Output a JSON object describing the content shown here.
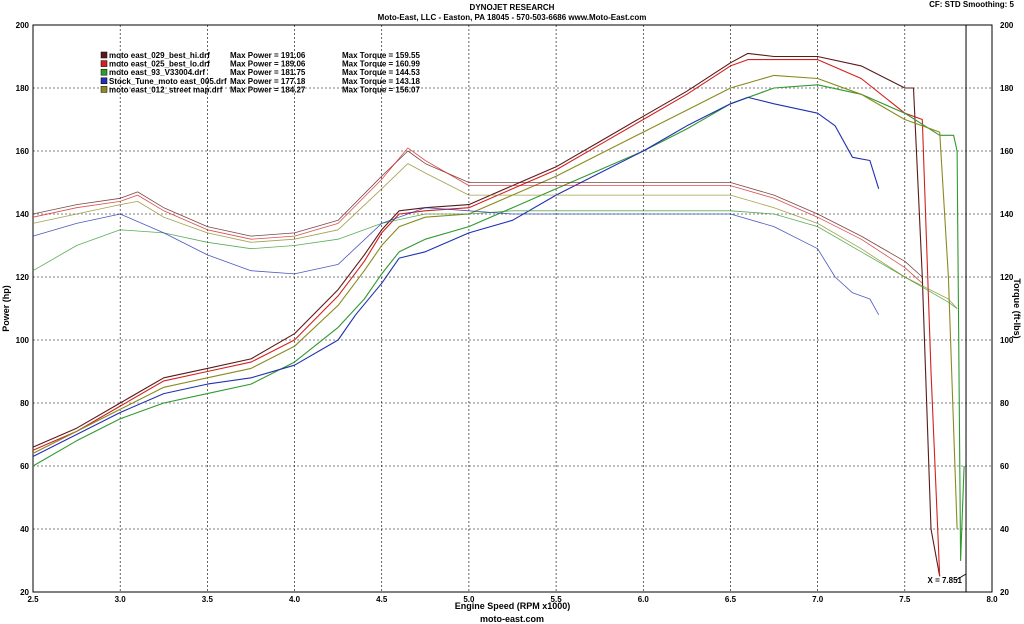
{
  "header": {
    "title": "DYNOJET RESEARCH",
    "subtitle": "Moto-East, LLC - Easton, PA 18045 - 570-503-6686 www.Moto-East.com",
    "settings": "CF: STD   Smoothing: 5"
  },
  "footer": {
    "text": "moto-east.com"
  },
  "chart_data": {
    "type": "line",
    "xlabel": "Engine Speed (RPM x1000)",
    "ylabel_left": "Power (hp)",
    "ylabel_right": "Torque (ft-lbs)",
    "xlim": [
      2.5,
      8.0
    ],
    "ylim": [
      20,
      200
    ],
    "xticks": [
      "2.5",
      "3.0",
      "3.5",
      "4.0",
      "4.5",
      "5.0",
      "5.5",
      "6.0",
      "6.5",
      "7.0",
      "7.5",
      "8.0"
    ],
    "yticks": [
      "20",
      "40",
      "60",
      "80",
      "100",
      "120",
      "140",
      "160",
      "180",
      "200"
    ],
    "grid": true,
    "legend_position": "top-left",
    "cursor": {
      "label": "X = 7.851",
      "x": 7.851
    },
    "legend": [
      {
        "name": "moto east_029_best_hi.drf",
        "power_label": "Max Power = 191.06",
        "torque_label": "Max Torque = 159.55",
        "color": "#5a1a1a"
      },
      {
        "name": "moto east_025_best_lo.drf",
        "power_label": "Max Power = 189.06",
        "torque_label": "Max Torque = 160.99",
        "color": "#d42020"
      },
      {
        "name": "moto east_93_V33004.drf",
        "power_label": "Max Power = 181.75",
        "torque_label": "Max Torque = 144.53",
        "color": "#2f9a2f"
      },
      {
        "name": "Stock_Tune_moto east_005.drf",
        "power_label": "Max Power = 177.18",
        "torque_label": "Max Torque = 143.18",
        "color": "#2030b0"
      },
      {
        "name": "moto east_012_street map.drf",
        "power_label": "Max Power = 184.27",
        "torque_label": "Max Torque = 156.07",
        "color": "#8a8a20"
      }
    ],
    "series": [
      {
        "name": "moto east_029_best_hi.drf",
        "kind": "power",
        "color": "#5a1a1a",
        "x": [
          2.5,
          2.75,
          3.0,
          3.25,
          3.5,
          3.75,
          4.0,
          4.25,
          4.4,
          4.5,
          4.6,
          4.75,
          5.0,
          5.25,
          5.5,
          5.75,
          6.0,
          6.25,
          6.5,
          6.6,
          6.75,
          7.0,
          7.25,
          7.5,
          7.55,
          7.6,
          7.65,
          7.7
        ],
        "y": [
          66,
          72,
          80,
          88,
          91,
          94,
          102,
          116,
          127,
          135,
          141,
          142,
          143,
          149,
          155,
          163,
          171,
          179,
          188,
          191,
          190,
          190,
          187,
          180,
          180,
          120,
          40,
          25
        ]
      },
      {
        "name": "moto east_025_best_lo.drf",
        "kind": "power",
        "color": "#d42020",
        "x": [
          2.5,
          2.75,
          3.0,
          3.25,
          3.5,
          3.75,
          4.0,
          4.25,
          4.4,
          4.5,
          4.6,
          4.75,
          5.0,
          5.25,
          5.5,
          5.75,
          6.0,
          6.25,
          6.5,
          6.6,
          6.75,
          7.0,
          7.25,
          7.5,
          7.6,
          7.65,
          7.7
        ],
        "y": [
          65,
          71,
          79,
          87,
          90,
          93,
          100,
          114,
          125,
          134,
          140,
          141,
          142,
          148,
          154,
          162,
          170,
          178,
          187,
          189,
          189,
          189,
          183,
          172,
          170,
          90,
          25
        ]
      },
      {
        "name": "moto east_93_V33004.drf",
        "kind": "power",
        "color": "#2f9a2f",
        "x": [
          2.5,
          2.75,
          3.0,
          3.25,
          3.5,
          3.75,
          4.0,
          4.25,
          4.4,
          4.5,
          4.6,
          4.75,
          5.0,
          5.25,
          5.5,
          5.75,
          6.0,
          6.25,
          6.5,
          6.75,
          7.0,
          7.25,
          7.5,
          7.7,
          7.78,
          7.8,
          7.82,
          7.84
        ],
        "y": [
          60,
          68,
          75,
          80,
          83,
          86,
          93,
          104,
          113,
          121,
          128,
          132,
          136,
          142,
          148,
          154,
          160,
          167,
          175,
          180,
          181,
          178,
          172,
          165,
          165,
          160,
          30,
          60
        ]
      },
      {
        "name": "Stock_Tune_moto east_005.drf",
        "kind": "power",
        "color": "#2030b0",
        "x": [
          2.5,
          2.75,
          3.0,
          3.25,
          3.5,
          3.75,
          4.0,
          4.25,
          4.35,
          4.5,
          4.6,
          4.75,
          5.0,
          5.25,
          5.5,
          5.75,
          6.0,
          6.25,
          6.5,
          6.6,
          6.75,
          7.0,
          7.1,
          7.2,
          7.3,
          7.35
        ],
        "y": [
          63,
          70,
          77,
          83,
          86,
          88,
          92,
          100,
          108,
          118,
          126,
          128,
          134,
          138,
          146,
          153,
          160,
          168,
          175,
          177,
          175,
          172,
          168,
          158,
          157,
          148
        ]
      },
      {
        "name": "moto east_012_street map.drf",
        "kind": "power",
        "color": "#8a8a20",
        "x": [
          2.5,
          2.75,
          3.0,
          3.25,
          3.5,
          3.75,
          4.0,
          4.25,
          4.4,
          4.5,
          4.6,
          4.75,
          5.0,
          5.25,
          5.5,
          5.75,
          6.0,
          6.25,
          6.5,
          6.75,
          7.0,
          7.25,
          7.5,
          7.7,
          7.75,
          7.8
        ],
        "y": [
          64,
          71,
          78,
          85,
          88,
          91,
          98,
          111,
          122,
          130,
          136,
          139,
          140,
          146,
          152,
          159,
          166,
          173,
          180,
          184,
          183,
          178,
          170,
          166,
          120,
          40
        ]
      },
      {
        "name": "moto east_029_best_hi.drf",
        "kind": "torque",
        "color": "#5a1a1a",
        "x": [
          2.5,
          2.75,
          3.0,
          3.1,
          3.25,
          3.5,
          3.75,
          4.0,
          4.25,
          4.5,
          4.65,
          4.75,
          5.0,
          5.25,
          5.5,
          5.75,
          6.0,
          6.25,
          6.5,
          6.75,
          7.0,
          7.25,
          7.5,
          7.6
        ],
        "y": [
          140,
          143,
          145,
          147,
          142,
          136,
          133,
          134,
          138,
          152,
          160,
          156,
          150,
          150,
          150,
          150,
          150,
          150,
          150,
          146,
          140,
          133,
          125,
          120
        ]
      },
      {
        "name": "moto east_025_best_lo.drf",
        "kind": "torque",
        "color": "#d42020",
        "x": [
          2.5,
          2.75,
          3.0,
          3.1,
          3.25,
          3.5,
          3.75,
          4.0,
          4.25,
          4.5,
          4.65,
          4.75,
          5.0,
          5.25,
          5.5,
          5.75,
          6.0,
          6.25,
          6.5,
          6.75,
          7.0,
          7.25,
          7.5,
          7.6
        ],
        "y": [
          139,
          142,
          144,
          146,
          141,
          135,
          132,
          133,
          137,
          151,
          161,
          157,
          149,
          149,
          149,
          149,
          149,
          149,
          149,
          145,
          139,
          132,
          123,
          118
        ]
      },
      {
        "name": "moto east_93_V33004.drf",
        "kind": "torque",
        "color": "#2f9a2f",
        "x": [
          2.5,
          2.75,
          3.0,
          3.25,
          3.5,
          3.75,
          4.0,
          4.25,
          4.5,
          4.75,
          5.0,
          5.25,
          5.5,
          5.75,
          6.0,
          6.25,
          6.5,
          6.75,
          7.0,
          7.25,
          7.5,
          7.75,
          7.8
        ],
        "y": [
          122,
          130,
          135,
          134,
          131,
          129,
          130,
          132,
          137,
          140,
          140,
          141,
          141,
          141,
          141,
          141,
          141,
          140,
          136,
          128,
          120,
          112,
          110
        ]
      },
      {
        "name": "Stock_Tune_moto east_005.drf",
        "kind": "torque",
        "color": "#2030b0",
        "x": [
          2.5,
          2.75,
          3.0,
          3.25,
          3.5,
          3.75,
          4.0,
          4.25,
          4.5,
          4.75,
          5.0,
          5.25,
          5.5,
          5.75,
          6.0,
          6.25,
          6.5,
          6.75,
          7.0,
          7.1,
          7.2,
          7.3,
          7.35
        ],
        "y": [
          133,
          137,
          140,
          134,
          127,
          122,
          121,
          124,
          137,
          142,
          141,
          140,
          140,
          140,
          140,
          140,
          140,
          136,
          129,
          120,
          115,
          113,
          108
        ]
      },
      {
        "name": "moto east_012_street map.drf",
        "kind": "torque",
        "color": "#8a8a20",
        "x": [
          2.5,
          2.75,
          3.0,
          3.1,
          3.25,
          3.5,
          3.75,
          4.0,
          4.25,
          4.5,
          4.65,
          4.75,
          5.0,
          5.25,
          5.5,
          5.75,
          6.0,
          6.25,
          6.5,
          6.75,
          7.0,
          7.25,
          7.5,
          7.75,
          7.8
        ],
        "y": [
          137,
          140,
          143,
          144,
          139,
          134,
          131,
          132,
          135,
          148,
          156,
          153,
          146,
          146,
          146,
          146,
          146,
          146,
          146,
          142,
          137,
          129,
          120,
          113,
          110
        ]
      }
    ]
  }
}
